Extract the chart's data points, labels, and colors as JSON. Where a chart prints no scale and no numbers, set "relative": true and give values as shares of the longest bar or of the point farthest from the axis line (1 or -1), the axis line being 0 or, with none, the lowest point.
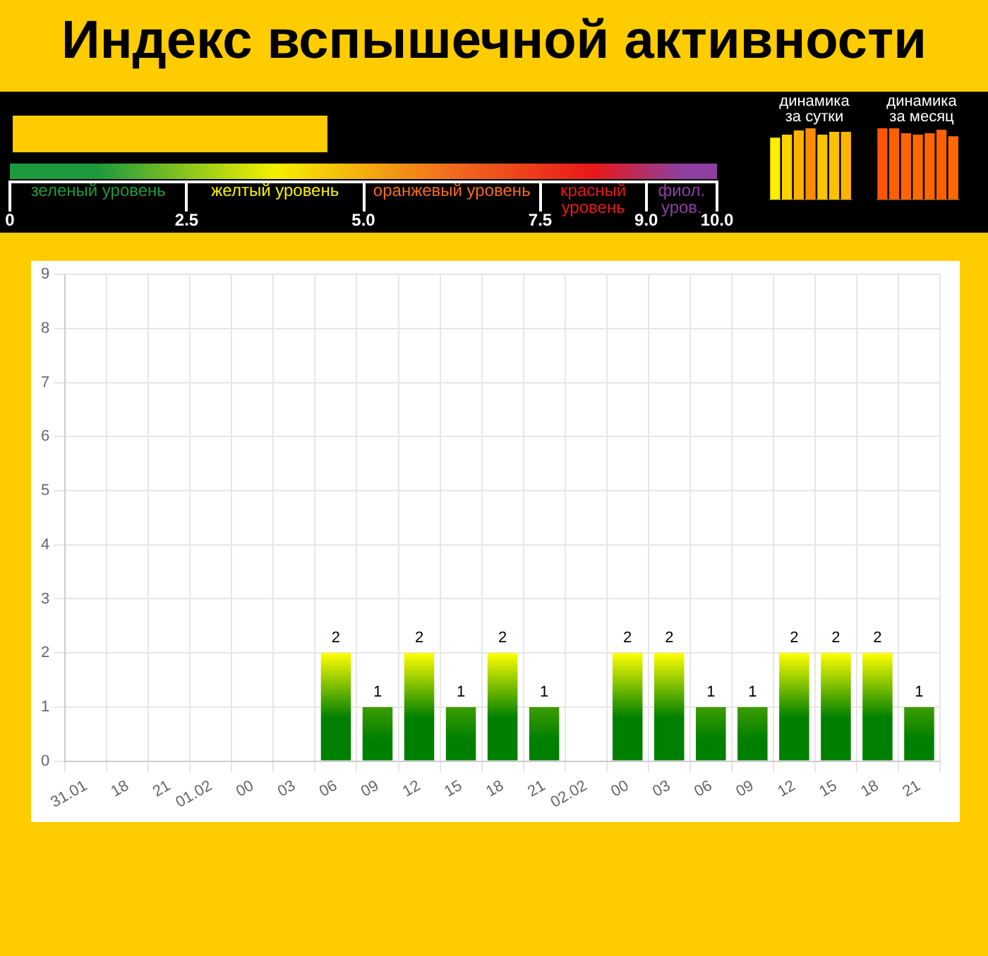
{
  "chart_data": [
    {
      "type": "other",
      "title": "Индекс вспышечной активности",
      "categories": [
        "зеленый уровень",
        "желтый уровень",
        "оранжевый уровень",
        "красный уровень",
        "фиол. уров."
      ],
      "colors": [
        "#1e9a3c",
        "#f5f000",
        "#f26b1d",
        "#e81818",
        "#8e3fa0"
      ],
      "annotations": [
        "0",
        "2.5",
        "5.0",
        "7.5",
        "9.0",
        "10.0"
      ]
    },
    {
      "type": "bar",
      "title": "динамика за сутки",
      "relative": true,
      "categories": [
        null,
        null,
        null,
        null,
        null,
        null,
        null
      ],
      "values": [
        0.87,
        0.91,
        0.97,
        1,
        0.91,
        0.95,
        0.95
      ],
      "colors": [
        "#ffee00",
        "#ffd200",
        "#ffb000",
        "#ff8c00",
        "#ffc400",
        "#ffc000",
        "#ffb400"
      ]
    },
    {
      "type": "bar",
      "title": "динамика за месяц",
      "relative": true,
      "categories": [
        null,
        null,
        null,
        null,
        null,
        null,
        null
      ],
      "values": [
        1,
        1,
        0.93,
        0.91,
        0.93,
        0.98,
        0.89
      ],
      "colors": [
        "#ff5500",
        "#ff6000",
        "#ff6600",
        "#ff6a00",
        "#ff6600",
        "#ff6000",
        "#ff6a00"
      ]
    },
    {
      "type": "bar",
      "categories": [
        "31.01",
        "18",
        "21",
        "01.02",
        "00",
        "03",
        "06",
        "09",
        "12",
        "15",
        "18",
        "21",
        "02.02",
        "00",
        "03",
        "06",
        "09",
        "12",
        "15",
        "18",
        "21"
      ],
      "values": [
        0,
        0,
        0,
        0,
        0,
        0,
        2,
        1,
        2,
        1,
        2,
        1,
        0,
        2,
        2,
        1,
        1,
        2,
        2,
        2,
        1
      ],
      "value_labels": [
        null,
        null,
        null,
        null,
        null,
        null,
        "2",
        "1",
        "2",
        "1",
        "2",
        "1",
        null,
        "2",
        "2",
        "1",
        "1",
        "2",
        "2",
        "2",
        "1"
      ],
      "colors": [
        "#ffff00",
        "#ffff00",
        "#ffff00",
        "#ffff00",
        "#ffff00",
        "#ffff00",
        "#ffff00",
        "#3c9c00",
        "#ffff00",
        "#3c9c00",
        "#ffff00",
        "#3c9c00",
        "#ffff00",
        "#ffff00",
        "#ffff00",
        "#3c9c00",
        "#3c9c00",
        "#ffff00",
        "#ffff00",
        "#ffff00",
        "#3c9c00"
      ],
      "ylim": [
        0,
        9
      ],
      "yticks": [
        0,
        1,
        2,
        3,
        4,
        5,
        6,
        7,
        8,
        9
      ],
      "grid": true
    }
  ]
}
